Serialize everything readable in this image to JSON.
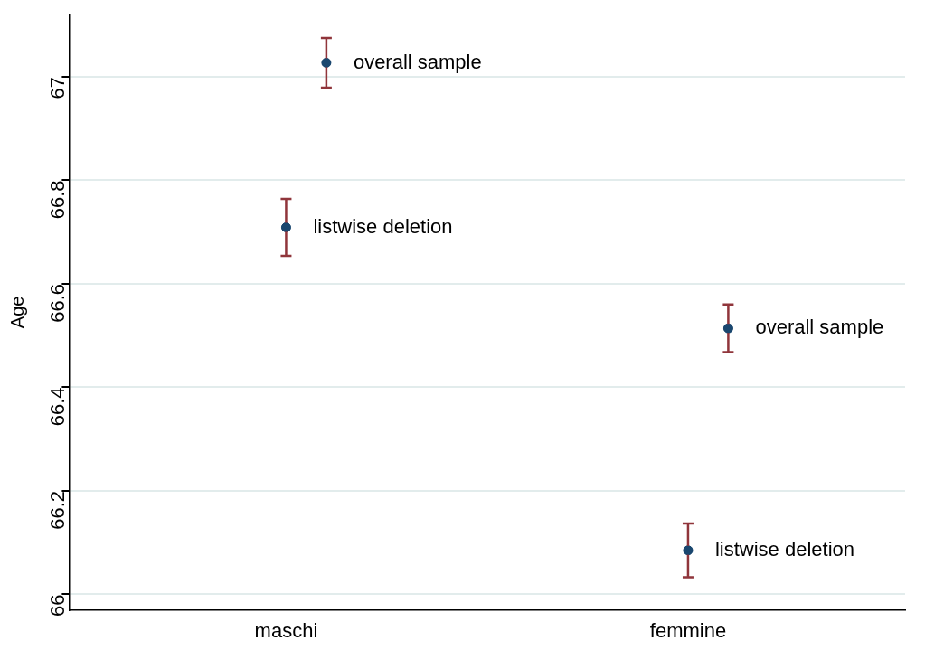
{
  "chart_data": {
    "type": "scatter",
    "ylabel": "Age",
    "categories": [
      "maschi",
      "femmine"
    ],
    "ylim": [
      65.97,
      67.12
    ],
    "yticks": [
      66,
      66.2,
      66.4,
      66.6,
      66.8,
      67
    ],
    "grid": "y",
    "legend": false,
    "marker": "circle",
    "series": [
      {
        "name": "listwise deletion",
        "color": "#1a476f",
        "values": [
          66.709,
          66.085
        ],
        "errors": [
          0.055,
          0.052
        ]
      },
      {
        "name": "overall sample",
        "color": "#1a476f",
        "values": [
          67.027,
          66.514
        ],
        "errors": [
          0.048,
          0.046
        ]
      }
    ]
  }
}
